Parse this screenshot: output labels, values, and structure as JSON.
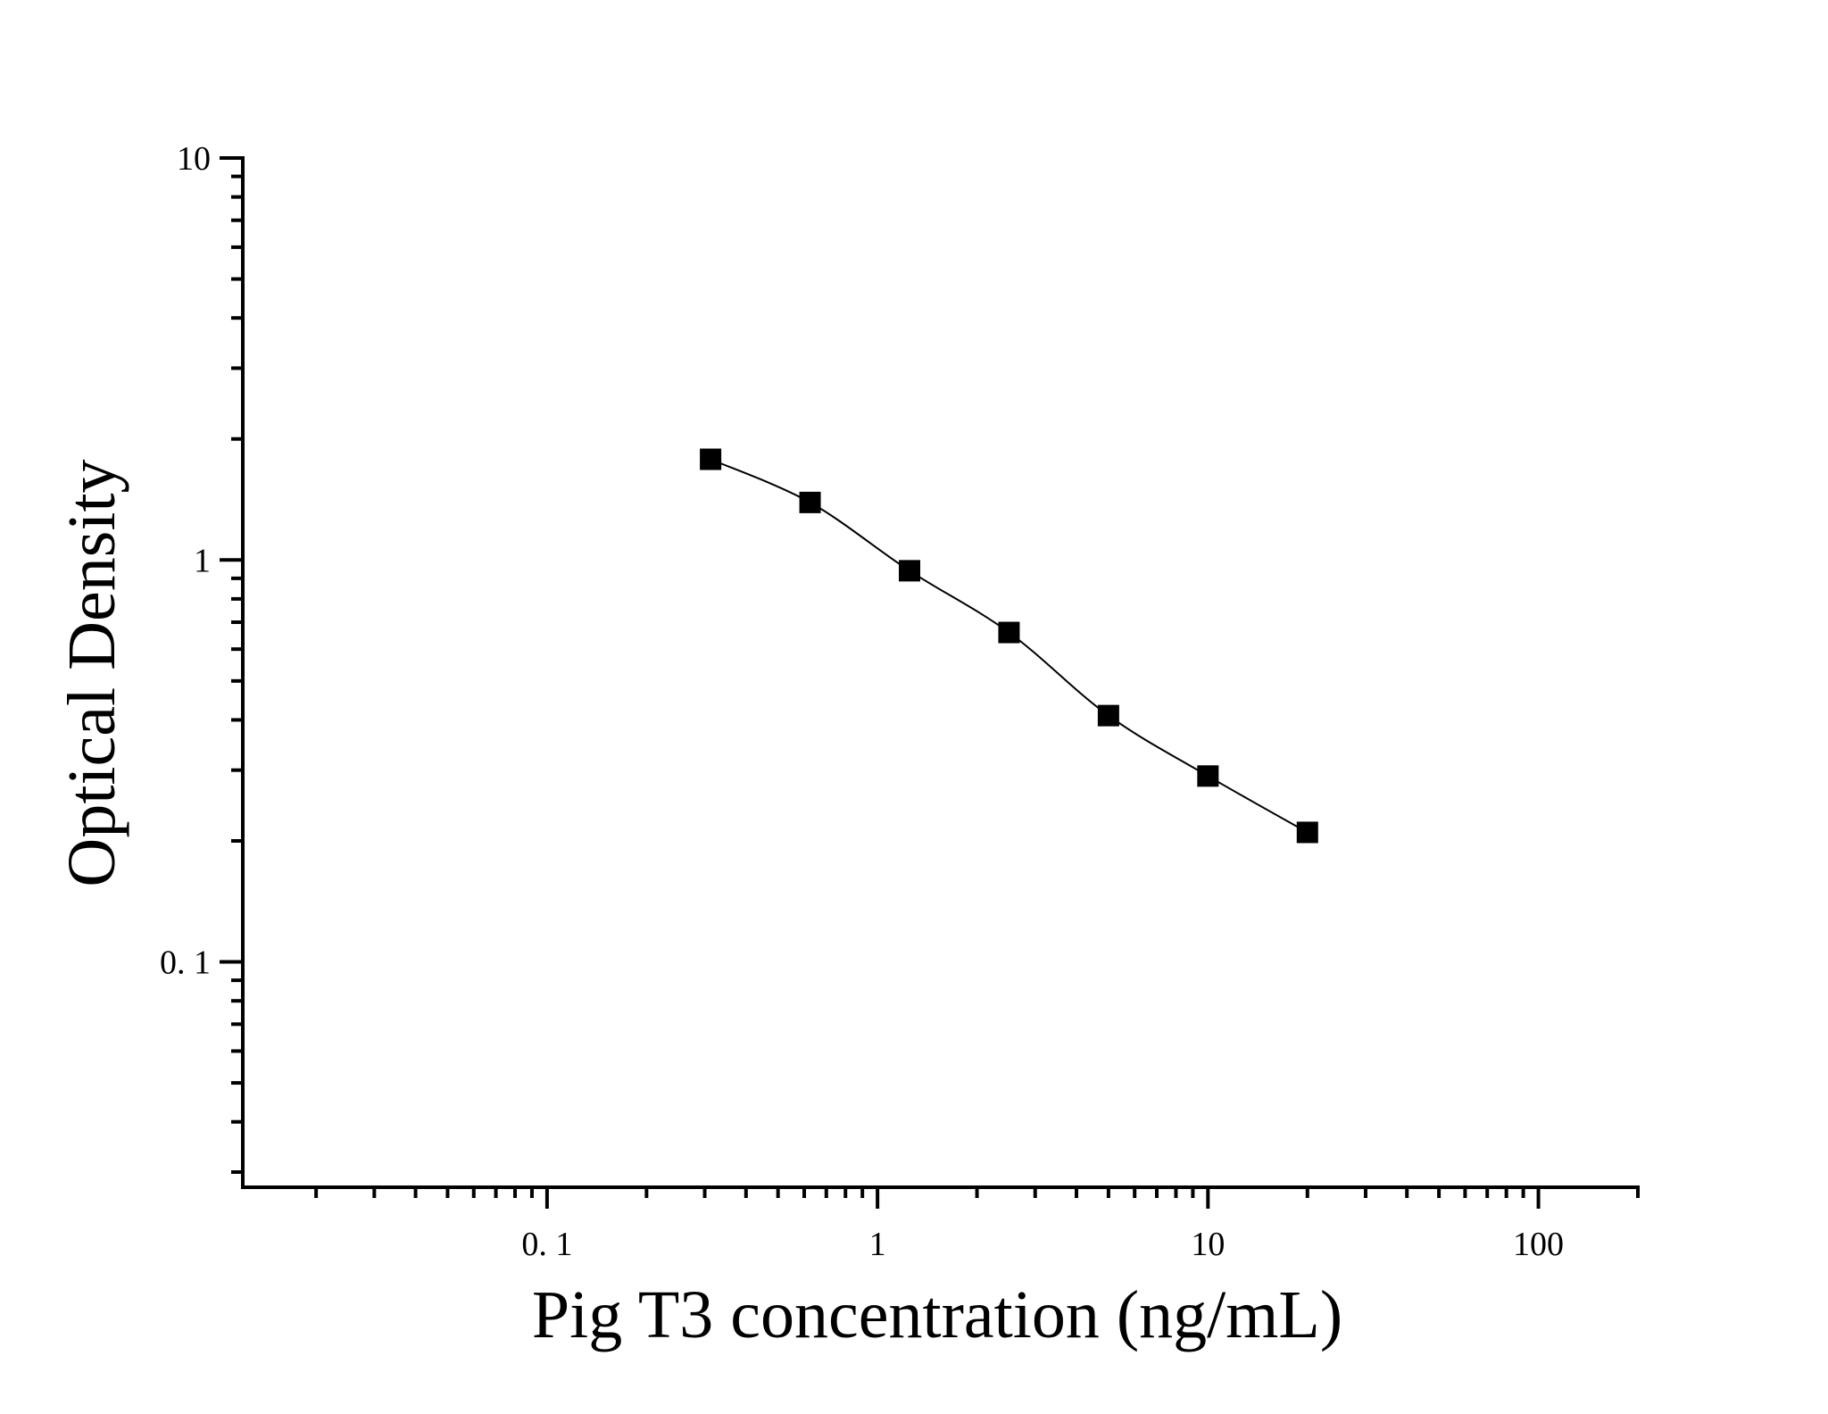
{
  "chart_data": {
    "type": "line",
    "xlabel": "Pig T3 concentration (ng/mL)",
    "ylabel": "Optical Density",
    "x_scale": "log",
    "y_scale": "log",
    "xlim": [
      0.012,
      200
    ],
    "ylim": [
      0.0275,
      10
    ],
    "x_ticks": [
      0.1,
      1,
      10,
      100
    ],
    "x_tick_labels": [
      "0. 1",
      "1",
      "10",
      "100"
    ],
    "y_ticks": [
      10,
      1,
      0.1
    ],
    "y_tick_labels": [
      "10",
      "1",
      "0. 1"
    ],
    "grid": false,
    "series": [
      {
        "marker": "square",
        "color": "#000000",
        "points": [
          {
            "x": 0.3125,
            "y": 1.78
          },
          {
            "x": 0.625,
            "y": 1.39
          },
          {
            "x": 1.25,
            "y": 0.94
          },
          {
            "x": 2.5,
            "y": 0.66
          },
          {
            "x": 5,
            "y": 0.41
          },
          {
            "x": 10,
            "y": 0.29
          },
          {
            "x": 20,
            "y": 0.21
          }
        ]
      }
    ]
  }
}
